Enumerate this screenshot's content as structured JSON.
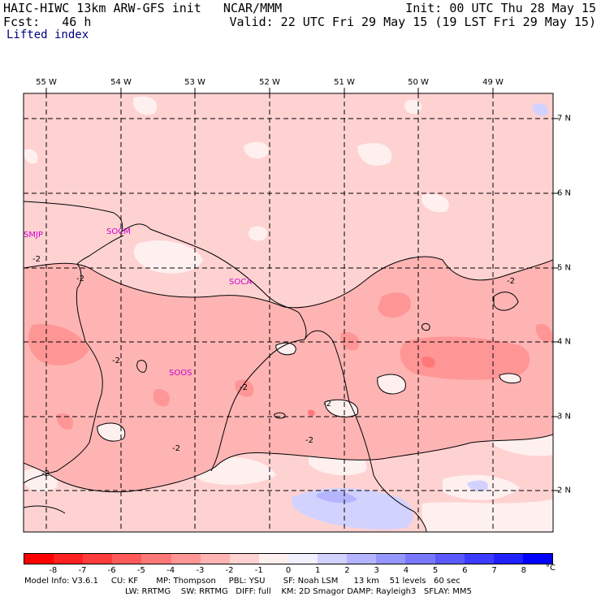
{
  "header": {
    "title_left": "HAIC-HIWC 13km ARW-GFS init   NCAR/MMM",
    "forecast_left": "Fcst:   46 h",
    "init_right": "Init: 00 UTC Thu 28 May 15",
    "valid_right": "Valid: 22 UTC Fri 29 May 15 (19 LST Fri 29 May 15)",
    "field_name": "Lifted index"
  },
  "map": {
    "longitudes": [
      "55 W",
      "54 W",
      "53 W",
      "52 W",
      "51 W",
      "50 W",
      "49 W"
    ],
    "latitudes": [
      "7 N",
      "6 N",
      "5 N",
      "4 N",
      "3 N",
      "2 N"
    ],
    "stations": [
      "SMJP",
      "SOCM",
      "SOCA",
      "SOOS"
    ],
    "contour_label": "-2",
    "colors": {
      "light_pink": "#ffd2d2",
      "pink": "#ffb4b4",
      "medium_pink": "#ff9696",
      "dark_pink": "#ff7878",
      "near_white": "#fff0f0",
      "light_blue": "#d2d2ff",
      "blue": "#b4b4ff"
    }
  },
  "legend": {
    "labels": [
      "-8",
      "-7",
      "-6",
      "-5",
      "-4",
      "-3",
      "-2",
      "-1",
      "0",
      "1",
      "2",
      "3",
      "4",
      "5",
      "6",
      "7",
      "8"
    ],
    "unit": "°C",
    "colors": [
      "#ff0000",
      "#ff2020",
      "#ff3c3c",
      "#ff5a5a",
      "#ff7878",
      "#ff9696",
      "#ffb4b4",
      "#ffd2d2",
      "#fff0f0",
      "#f0f0ff",
      "#d2d2ff",
      "#b4b4ff",
      "#9696ff",
      "#7878ff",
      "#5a5aff",
      "#3c3cff",
      "#2020ff",
      "#0000ff"
    ]
  },
  "footer": {
    "line1": "Model Info: V3.6.1     CU: KF       MP: Thompson     PBL: YSU       SF: Noah LSM      13 km    51 levels   60 sec",
    "line2": "LW: RRTMG    SW: RRTMG   DIFF: full    KM: 2D Smagor DAMP: Rayleigh3   SFLAY: MM5"
  }
}
